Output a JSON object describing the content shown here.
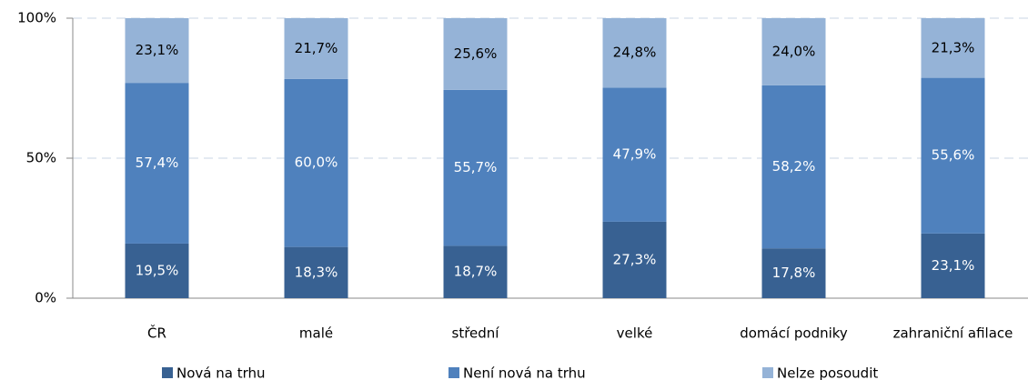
{
  "chart_data": {
    "type": "stacked_bar",
    "categories": [
      "ČR",
      "malé",
      "střední",
      "velké",
      "domácí podniky",
      "zahraniční afilace"
    ],
    "series": [
      {
        "name": "Nová na trhu",
        "color": "#386192",
        "values": [
          19.5,
          18.3,
          18.7,
          27.3,
          17.8,
          23.1
        ],
        "value_labels": [
          "19,5%",
          "18,3%",
          "18,7%",
          "27,3%",
          "17,8%",
          "23,1%"
        ]
      },
      {
        "name": "Není nová na trhu",
        "color": "#4f81bd",
        "values": [
          57.4,
          60.0,
          55.7,
          47.9,
          58.2,
          55.6
        ],
        "value_labels": [
          "57,4%",
          "60,0%",
          "55,7%",
          "47,9%",
          "58,2%",
          "55,6%"
        ]
      },
      {
        "name": "Nelze posoudit",
        "color": "#95b3d7",
        "values": [
          23.1,
          21.7,
          25.6,
          24.8,
          24.0,
          21.3
        ],
        "value_labels": [
          "23,1%",
          "21,7%",
          "25,6%",
          "24,8%",
          "24,0%",
          "21,3%"
        ]
      }
    ],
    "ylim": [
      0,
      100
    ],
    "yticks": [
      {
        "value": 0,
        "label": "0%"
      },
      {
        "value": 50,
        "label": "50%"
      },
      {
        "value": 100,
        "label": "100%"
      }
    ],
    "grid": true,
    "legend": "bottom"
  }
}
